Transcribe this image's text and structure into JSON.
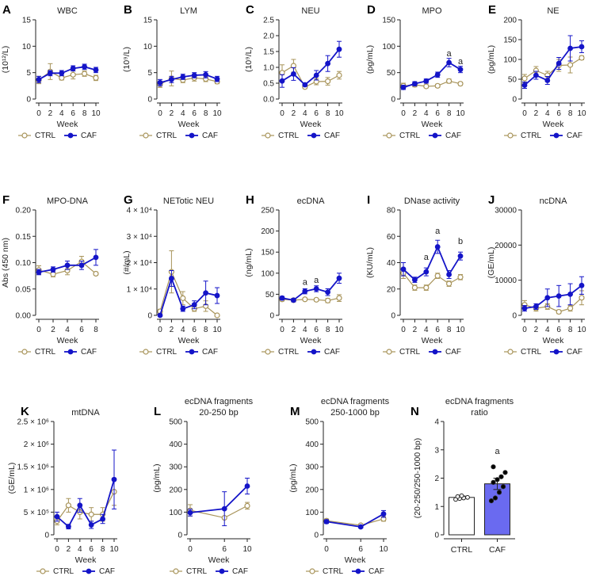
{
  "colors": {
    "ctrl": "#A8945A",
    "caf": "#1414C8",
    "ctrl_fill": "#FFFFFF",
    "caf_bar": "#6A6AF0"
  },
  "legend": {
    "ctrl": "CTRL",
    "caf": "CAF"
  },
  "chart_data": [
    {
      "id": "A",
      "label": "A",
      "title": [
        "WBC"
      ],
      "type": "line",
      "ylabel": "(10¹²/L)",
      "xlabel": "Week",
      "ylim": [
        0,
        15
      ],
      "yticks": [
        "0",
        "5",
        "10",
        "15"
      ],
      "x": [
        0,
        2,
        4,
        6,
        8,
        10
      ],
      "xticks": [
        "0",
        "2",
        "4",
        "6",
        "8",
        "10"
      ],
      "series": [
        {
          "name": "CTRL",
          "values": [
            3.6,
            5.2,
            4.0,
            4.6,
            4.8,
            4.0
          ],
          "err": [
            0.7,
            1.5,
            0.4,
            0.8,
            0.5,
            0.5
          ]
        },
        {
          "name": "CAF",
          "values": [
            3.7,
            4.9,
            4.9,
            5.8,
            6.1,
            5.5
          ],
          "err": [
            0.6,
            0.5,
            0.5,
            0.5,
            0.5,
            0.5
          ]
        }
      ],
      "annotations": []
    },
    {
      "id": "B",
      "label": "B",
      "title": [
        "LYM"
      ],
      "type": "line",
      "ylabel": "(10⁹/L)",
      "xlabel": "Week",
      "ylim": [
        0,
        15
      ],
      "yticks": [
        "0",
        "5",
        "10",
        "15"
      ],
      "x": [
        0,
        2,
        4,
        6,
        8,
        10
      ],
      "xticks": [
        "0",
        "2",
        "4",
        "6",
        "8",
        "10"
      ],
      "series": [
        {
          "name": "CTRL",
          "values": [
            2.8,
            3.9,
            3.6,
            4.0,
            3.8,
            3.3
          ],
          "err": [
            0.6,
            1.4,
            0.5,
            0.6,
            0.5,
            0.4
          ]
        },
        {
          "name": "CAF",
          "values": [
            3.1,
            3.7,
            4.2,
            4.5,
            4.6,
            3.8
          ],
          "err": [
            0.6,
            0.6,
            0.5,
            0.5,
            0.6,
            0.5
          ]
        }
      ],
      "annotations": []
    },
    {
      "id": "C",
      "label": "C",
      "title": [
        "NEU"
      ],
      "type": "line",
      "ylabel": "(10⁹/L)",
      "xlabel": "Week",
      "ylim": [
        0,
        2.5
      ],
      "yticks": [
        "0.0",
        "0.5",
        "1.0",
        "1.5",
        "2.0",
        "2.5"
      ],
      "x": [
        0,
        2,
        4,
        6,
        8,
        10
      ],
      "xticks": [
        "0",
        "2",
        "4",
        "6",
        "8",
        "10"
      ],
      "series": [
        {
          "name": "CTRL",
          "values": [
            0.83,
            1.05,
            0.38,
            0.55,
            0.56,
            0.75
          ],
          "err": [
            0.25,
            0.2,
            0.05,
            0.1,
            0.12,
            0.12
          ]
        },
        {
          "name": "CAF",
          "values": [
            0.57,
            0.79,
            0.45,
            0.75,
            1.12,
            1.57
          ],
          "err": [
            0.2,
            0.2,
            0.05,
            0.15,
            0.25,
            0.25
          ]
        }
      ],
      "annotations": []
    },
    {
      "id": "D",
      "label": "D",
      "title": [
        "MPO"
      ],
      "type": "line",
      "ylabel": "(pg/mL)",
      "xlabel": "Week",
      "ylim": [
        0,
        150
      ],
      "yticks": [
        "0",
        "50",
        "100",
        "150"
      ],
      "x": [
        0,
        2,
        4,
        6,
        8,
        10
      ],
      "xticks": [
        "0",
        "2",
        "4",
        "6",
        "8",
        "10"
      ],
      "series": [
        {
          "name": "CTRL",
          "values": [
            25,
            27,
            24,
            25,
            34,
            29
          ],
          "err": [
            5,
            4,
            3,
            3,
            4,
            3
          ]
        },
        {
          "name": "CAF",
          "values": [
            22,
            29,
            34,
            46,
            69,
            56
          ],
          "err": [
            4,
            4,
            4,
            5,
            8,
            6
          ]
        }
      ],
      "annotations": [
        {
          "text": "a",
          "x": 8,
          "y": 81
        },
        {
          "text": "a",
          "x": 10,
          "y": 66
        }
      ]
    },
    {
      "id": "E",
      "label": "E",
      "title": [
        "NE"
      ],
      "type": "line",
      "ylabel": "(pg/mL)",
      "xlabel": "Week",
      "ylim": [
        0,
        200
      ],
      "yticks": [
        "0",
        "50",
        "100",
        "150",
        "200"
      ],
      "x": [
        0,
        2,
        4,
        6,
        8,
        10
      ],
      "xticks": [
        "0",
        "2",
        "4",
        "6",
        "8",
        "10"
      ],
      "series": [
        {
          "name": "CTRL",
          "values": [
            52,
            72,
            60,
            85,
            86,
            104
          ],
          "err": [
            10,
            10,
            10,
            15,
            20,
            5
          ]
        },
        {
          "name": "CAF",
          "values": [
            35,
            60,
            47,
            90,
            128,
            132
          ],
          "err": [
            8,
            10,
            10,
            15,
            32,
            15
          ]
        }
      ],
      "annotations": []
    },
    {
      "id": "F",
      "label": "F",
      "title": [
        "MPO-DNA"
      ],
      "type": "line",
      "ylabel": "Abs (450 nm)",
      "xlabel": "Week",
      "ylim": [
        0,
        0.2
      ],
      "yticks": [
        "0.00",
        "0.05",
        "0.10",
        "0.15",
        "0.20"
      ],
      "x": [
        0,
        2,
        4,
        6,
        8
      ],
      "xticks": [
        "0",
        "2",
        "4",
        "6",
        "8"
      ],
      "series": [
        {
          "name": "CTRL",
          "values": [
            0.086,
            0.078,
            0.085,
            0.102,
            0.079
          ],
          "err": [
            0.008,
            0.005,
            0.008,
            0.01,
            0.003
          ]
        },
        {
          "name": "CAF",
          "values": [
            0.082,
            0.087,
            0.095,
            0.095,
            0.11
          ],
          "err": [
            0.005,
            0.005,
            0.008,
            0.008,
            0.015
          ]
        }
      ],
      "annotations": []
    },
    {
      "id": "G",
      "label": "G",
      "title": [
        "NETotic NEU"
      ],
      "type": "line",
      "ylabel": "(#/mL)",
      "xlabel": "Week",
      "ylim": [
        0,
        40000
      ],
      "yticks": [
        "0",
        "1 × 10⁴",
        "2 × 10⁴",
        "3 × 10⁴",
        "4 × 10⁴"
      ],
      "x": [
        0,
        2,
        4,
        6,
        8,
        10
      ],
      "xticks": [
        "0",
        "2",
        "4",
        "6",
        "8",
        "10"
      ],
      "series": [
        {
          "name": "CTRL",
          "values": [
            1500,
            16500,
            6500,
            2500,
            3500,
            0
          ],
          "err": [
            800,
            8000,
            2500,
            1000,
            2000,
            300
          ]
        },
        {
          "name": "CAF",
          "values": [
            0,
            14000,
            2500,
            4000,
            8500,
            7500
          ],
          "err": [
            500,
            3000,
            1000,
            1500,
            4500,
            3000
          ]
        }
      ],
      "annotations": []
    },
    {
      "id": "H",
      "label": "H",
      "title": [
        "ecDNA"
      ],
      "type": "line",
      "ylabel": "(ng/mL)",
      "xlabel": "Week",
      "ylim": [
        0,
        250
      ],
      "yticks": [
        "0",
        "50",
        "100",
        "150",
        "200",
        "250"
      ],
      "x": [
        0,
        2,
        4,
        6,
        8,
        10
      ],
      "xticks": [
        "0",
        "2",
        "4",
        "6",
        "8",
        "10"
      ],
      "series": [
        {
          "name": "CTRL",
          "values": [
            38,
            36,
            38,
            37,
            35,
            41
          ],
          "err": [
            4,
            4,
            3,
            3,
            5,
            8
          ]
        },
        {
          "name": "CAF",
          "values": [
            41,
            36,
            57,
            63,
            55,
            88
          ],
          "err": [
            4,
            4,
            6,
            7,
            8,
            12
          ]
        }
      ],
      "annotations": [
        {
          "text": "a",
          "x": 4,
          "y": 72
        },
        {
          "text": "a",
          "x": 6,
          "y": 77
        }
      ]
    },
    {
      "id": "I",
      "label": "I",
      "title": [
        "DNase activity"
      ],
      "type": "line",
      "ylabel": "(KU/mL)",
      "xlabel": "Week",
      "ylim": [
        0,
        80
      ],
      "yticks": [
        "0",
        "20",
        "40",
        "60",
        "80"
      ],
      "x": [
        0,
        2,
        4,
        6,
        8,
        10
      ],
      "xticks": [
        "0",
        "2",
        "4",
        "6",
        "8",
        "10"
      ],
      "series": [
        {
          "name": "CTRL",
          "values": [
            32,
            21,
            21,
            30,
            24,
            29
          ],
          "err": [
            4,
            2,
            2,
            2,
            2,
            2
          ]
        },
        {
          "name": "CAF",
          "values": [
            35,
            27,
            33,
            52,
            31,
            45
          ],
          "err": [
            5,
            2,
            3,
            5,
            3,
            3
          ]
        }
      ],
      "annotations": [
        {
          "text": "a",
          "x": 4,
          "y": 42
        },
        {
          "text": "a",
          "x": 6,
          "y": 62
        },
        {
          "text": "b",
          "x": 10,
          "y": 54
        }
      ]
    },
    {
      "id": "J",
      "label": "J",
      "title": [
        "ncDNA"
      ],
      "type": "line",
      "ylabel": "(GE/mL)",
      "xlabel": "Week",
      "ylim": [
        0,
        30000
      ],
      "yticks": [
        "0",
        "10000",
        "20000",
        "30000"
      ],
      "x": [
        0,
        2,
        4,
        6,
        8,
        10
      ],
      "xticks": [
        "0",
        "2",
        "4",
        "6",
        "8",
        "10"
      ],
      "series": [
        {
          "name": "CTRL",
          "values": [
            3000,
            2000,
            2500,
            1000,
            2000,
            5000
          ],
          "err": [
            1200,
            800,
            800,
            500,
            800,
            2000
          ]
        },
        {
          "name": "CAF",
          "values": [
            2000,
            2500,
            5000,
            5500,
            6000,
            8500
          ],
          "err": [
            800,
            800,
            2500,
            3000,
            3000,
            2500
          ]
        }
      ],
      "annotations": []
    },
    {
      "id": "K",
      "label": "K",
      "title": [
        "mtDNA"
      ],
      "type": "line",
      "ylabel": "(GE/mL)",
      "xlabel": "Week",
      "ylim": [
        0,
        2500000
      ],
      "yticks": [
        "0",
        "5 × 10⁵",
        "1 × 10⁶",
        "1.5 × 10⁶",
        "2 × 10⁶",
        "2.5 × 10⁶"
      ],
      "x": [
        0,
        2,
        4,
        6,
        8,
        10
      ],
      "xticks": [
        "0",
        "2",
        "4",
        "6",
        "8",
        "10"
      ],
      "series": [
        {
          "name": "CTRL",
          "values": [
            300000,
            650000,
            500000,
            450000,
            450000,
            950000
          ],
          "err": [
            80000,
            150000,
            150000,
            150000,
            150000,
            300000
          ]
        },
        {
          "name": "CAF",
          "values": [
            400000,
            180000,
            650000,
            220000,
            350000,
            1220000
          ],
          "err": [
            100000,
            50000,
            150000,
            80000,
            100000,
            650000
          ]
        }
      ],
      "annotations": []
    },
    {
      "id": "L",
      "label": "L",
      "title": [
        "ecDNA fragments",
        "20-250 bp"
      ],
      "type": "line",
      "ylabel": "(pg/mL)",
      "xlabel": "Week",
      "ylim": [
        0,
        500
      ],
      "yticks": [
        "0",
        "100",
        "200",
        "300",
        "400",
        "500"
      ],
      "x": [
        0,
        6,
        10
      ],
      "xticks": [
        "0",
        "6",
        "10"
      ],
      "series": [
        {
          "name": "CTRL",
          "values": [
            108,
            75,
            128
          ],
          "err": [
            25,
            5,
            15
          ]
        },
        {
          "name": "CAF",
          "values": [
            98,
            115,
            215
          ],
          "err": [
            15,
            75,
            35
          ]
        }
      ],
      "annotations": []
    },
    {
      "id": "M",
      "label": "M",
      "title": [
        "ecDNA fragments",
        "250-1000 bp"
      ],
      "type": "line",
      "ylabel": "(pg/mL)",
      "xlabel": "Week",
      "ylim": [
        0,
        500
      ],
      "yticks": [
        "0",
        "100",
        "200",
        "300",
        "400",
        "500"
      ],
      "x": [
        0,
        6,
        10
      ],
      "xticks": [
        "0",
        "6",
        "10"
      ],
      "series": [
        {
          "name": "CTRL",
          "values": [
            62,
            42,
            70
          ],
          "err": [
            8,
            5,
            10
          ]
        },
        {
          "name": "CAF",
          "values": [
            58,
            35,
            92
          ],
          "err": [
            8,
            5,
            15
          ]
        }
      ],
      "annotations": []
    },
    {
      "id": "N",
      "label": "N",
      "title": [
        "ecDNA fragments",
        "ratio"
      ],
      "type": "bar",
      "ylabel": "(20-250/250-1000 bp)",
      "xlabel": "",
      "ylim": [
        0,
        4
      ],
      "yticks": [
        "0",
        "1",
        "2",
        "3",
        "4"
      ],
      "categories": [
        "CTRL",
        "CAF"
      ],
      "values": [
        1.32,
        1.8
      ],
      "err": [
        0.05,
        0.2
      ],
      "points": [
        [
          1.25,
          1.28,
          1.3,
          1.32,
          1.35,
          1.38
        ],
        [
          1.2,
          1.3,
          1.5,
          1.7,
          1.85,
          1.95,
          2.05,
          2.2,
          2.4
        ]
      ],
      "annotations": [
        {
          "text": "a",
          "category": 1,
          "y": 2.85
        }
      ]
    }
  ]
}
